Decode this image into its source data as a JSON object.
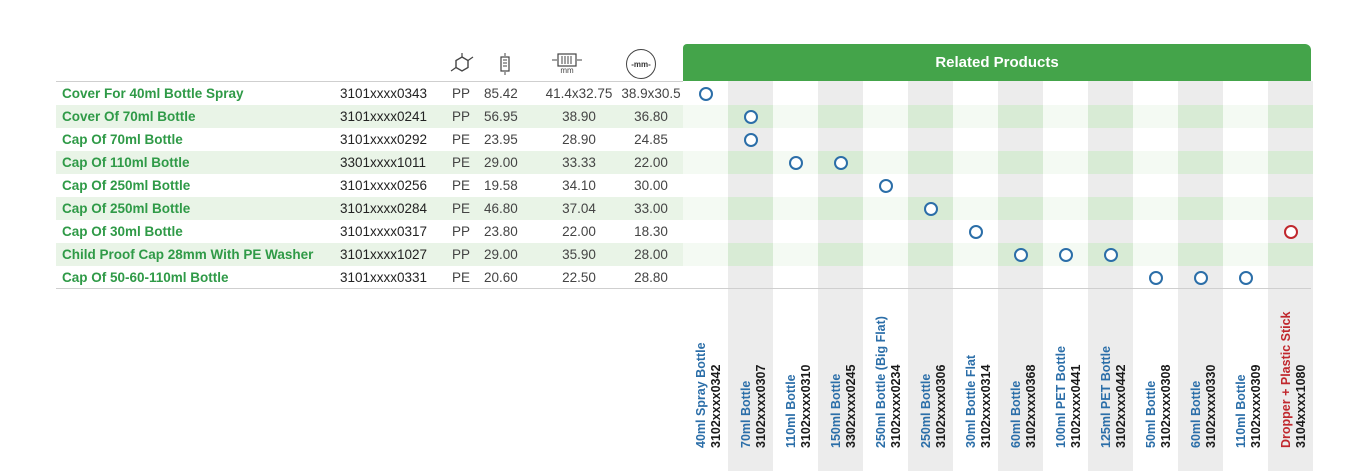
{
  "header_icons": [
    "material-icon",
    "weight-icon",
    "size-icon",
    "neck-icon"
  ],
  "header_labels": {
    "size_unit": "mm",
    "neck_unit": "-mm-"
  },
  "products": [
    {
      "name": "Cover For 40ml Bottle Spray",
      "code": "3101xxxx0343",
      "material": "PP",
      "weight": "85.42",
      "dim1": "41.4x32.75",
      "dim2": "38.9x30.5",
      "related": [
        0
      ]
    },
    {
      "name": "Cover Of 70ml Bottle",
      "code": "3101xxxx0241",
      "material": "PP",
      "weight": "56.95",
      "dim1": "38.90",
      "dim2": "36.80",
      "related": [
        1
      ]
    },
    {
      "name": "Cap Of 70ml Bottle",
      "code": "3101xxxx0292",
      "material": "PE",
      "weight": "23.95",
      "dim1": "28.90",
      "dim2": "24.85",
      "related": [
        1
      ]
    },
    {
      "name": "Cap Of 110ml Bottle",
      "code": "3301xxxx1011",
      "material": "PE",
      "weight": "29.00",
      "dim1": "33.33",
      "dim2": "22.00",
      "related": [
        2,
        3
      ]
    },
    {
      "name": "Cap Of 250ml Bottle",
      "code": "3101xxxx0256",
      "material": "PE",
      "weight": "19.58",
      "dim1": "34.10",
      "dim2": "30.00",
      "related": [
        4
      ]
    },
    {
      "name": "Cap Of 250ml Bottle",
      "code": "3101xxxx0284",
      "material": "PE",
      "weight": "46.80",
      "dim1": "37.04",
      "dim2": "33.00",
      "related": [
        5
      ]
    },
    {
      "name": "Cap Of 30ml Bottle",
      "code": "3101xxxx0317",
      "material": "PP",
      "weight": "23.80",
      "dim1": "22.00",
      "dim2": "18.30",
      "related": [
        6,
        13
      ]
    },
    {
      "name": "Child Proof Cap 28mm With PE Washer",
      "code": "3101xxxx1027",
      "material": "PP",
      "weight": "29.00",
      "dim1": "35.90",
      "dim2": "28.00",
      "related": [
        7,
        8,
        9
      ]
    },
    {
      "name": "Cap Of 50-60-110ml Bottle",
      "code": "3101xxxx0331",
      "material": "PE",
      "weight": "20.60",
      "dim1": "22.50",
      "dim2": "28.80",
      "related": [
        10,
        11,
        12
      ]
    }
  ],
  "related_products": {
    "title": "Related Products",
    "accent_color": "#44a44a",
    "mark_color": "#2b6ea8",
    "highlight_color": "#c0272d",
    "columns": [
      {
        "name": "40ml Spray Bottle",
        "code": "3102xxxx0342"
      },
      {
        "name": "70ml Bottle",
        "code": "3102xxxx0307"
      },
      {
        "name": "110ml Bottle",
        "code": "3102xxxx0310"
      },
      {
        "name": "150ml Bottle",
        "code": "3302xxxx0245"
      },
      {
        "name": "250ml Bottle (Big Flat)",
        "code": "3102xxxx0234"
      },
      {
        "name": "250ml Bottle",
        "code": "3102xxxx0306"
      },
      {
        "name": "30ml Bottle Flat",
        "code": "3102xxxx0314"
      },
      {
        "name": "60ml Bottle",
        "code": "3102xxxx0368"
      },
      {
        "name": "100ml PET Bottle",
        "code": "3102xxxx0441"
      },
      {
        "name": "125ml PET Bottle",
        "code": "3102xxxx0442"
      },
      {
        "name": "50ml Bottle",
        "code": "3102xxxx0308"
      },
      {
        "name": "60ml Bottle",
        "code": "3102xxxx0330"
      },
      {
        "name": "110ml Bottle",
        "code": "3102xxxx0309"
      },
      {
        "name": "Dropper + Plastic Stick",
        "code": "3104xxxx1080",
        "highlight": true
      }
    ]
  }
}
